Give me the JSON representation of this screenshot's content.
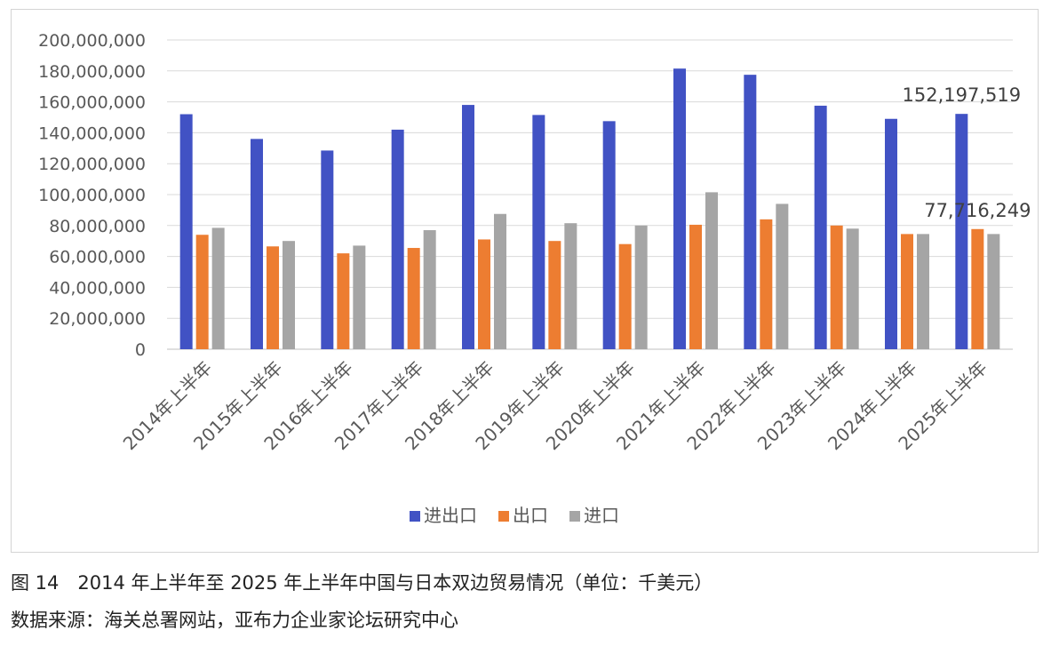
{
  "chart_data": {
    "type": "bar",
    "categories": [
      "2014年上半年",
      "2015年上半年",
      "2016年上半年",
      "2017年上半年",
      "2018年上半年",
      "2019年上半年",
      "2020年上半年",
      "2021年上半年",
      "2022年上半年",
      "2023年上半年",
      "2024年上半年",
      "2025年上半年"
    ],
    "series": [
      {
        "name": "进出口",
        "color": "#4152c4",
        "values": [
          152000000,
          136000000,
          128500000,
          142000000,
          158000000,
          151500000,
          147500000,
          181500000,
          177500000,
          157500000,
          149000000,
          152197519
        ]
      },
      {
        "name": "出口",
        "color": "#ed7d31",
        "values": [
          74000000,
          66500000,
          62000000,
          65500000,
          71000000,
          70000000,
          68000000,
          80500000,
          84000000,
          80000000,
          74500000,
          77716249
        ]
      },
      {
        "name": "进口",
        "color": "#a5a5a5",
        "values": [
          78500000,
          70000000,
          67000000,
          77000000,
          87500000,
          81500000,
          80000000,
          101500000,
          94000000,
          78000000,
          74500000,
          74500000
        ]
      }
    ],
    "ylim": [
      0,
      200000000
    ],
    "yticks": [
      "0",
      "20,000,000",
      "40,000,000",
      "60,000,000",
      "80,000,000",
      "100,000,000",
      "120,000,000",
      "140,000,000",
      "160,000,000",
      "180,000,000",
      "200,000,000"
    ],
    "data_labels": [
      {
        "series": 0,
        "index": 11,
        "text": "152,197,519"
      },
      {
        "series": 1,
        "index": 11,
        "text": "77,716,249"
      }
    ],
    "grid": true,
    "legend_position": "bottom"
  },
  "caption": {
    "figure": "图 14　2014 年上半年至 2025 年上半年中国与日本双边贸易情况（单位：千美元）",
    "source": "数据来源：海关总署网站，亚布力企业家论坛研究中心"
  }
}
